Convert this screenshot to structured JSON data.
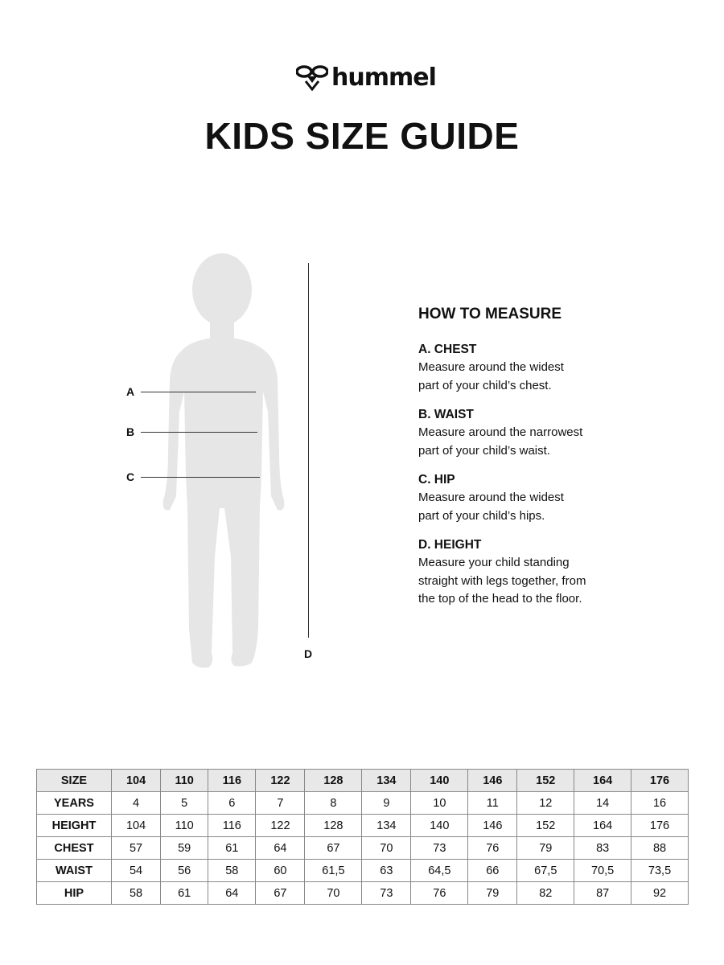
{
  "brand": {
    "name": "hummel",
    "logo_icon": "bee-logo-icon"
  },
  "title": "KIDS SIZE GUIDE",
  "figure": {
    "labels": {
      "a": "A",
      "b": "B",
      "c": "C",
      "d": "D"
    },
    "silhouette_color": "#e6e6e6"
  },
  "how_to_measure": {
    "heading": "HOW TO MEASURE",
    "sections": [
      {
        "title": "A. CHEST",
        "lines": [
          "Measure around the widest",
          "part of your child’s chest."
        ]
      },
      {
        "title": "B. WAIST",
        "lines": [
          "Measure around the narrowest",
          "part of your child’s waist."
        ]
      },
      {
        "title": "C. HIP",
        "lines": [
          "Measure around the widest",
          "part of your child’s hips."
        ]
      },
      {
        "title": "D. HEIGHT",
        "lines": [
          "Measure your child standing",
          "straight with legs together, from",
          "the top of the head to the floor."
        ]
      }
    ]
  },
  "table": {
    "header": [
      "SIZE",
      "104",
      "110",
      "116",
      "122",
      "128",
      "134",
      "140",
      "146",
      "152",
      "164",
      "176"
    ],
    "rows": [
      [
        "YEARS",
        "4",
        "5",
        "6",
        "7",
        "8",
        "9",
        "10",
        "11",
        "12",
        "14",
        "16"
      ],
      [
        "HEIGHT",
        "104",
        "110",
        "116",
        "122",
        "128",
        "134",
        "140",
        "146",
        "152",
        "164",
        "176"
      ],
      [
        "CHEST",
        "57",
        "59",
        "61",
        "64",
        "67",
        "70",
        "73",
        "76",
        "79",
        "83",
        "88"
      ],
      [
        "WAIST",
        "54",
        "56",
        "58",
        "60",
        "61,5",
        "63",
        "64,5",
        "66",
        "67,5",
        "70,5",
        "73,5"
      ],
      [
        "HIP",
        "58",
        "61",
        "64",
        "67",
        "70",
        "73",
        "76",
        "79",
        "82",
        "87",
        "92"
      ]
    ]
  }
}
